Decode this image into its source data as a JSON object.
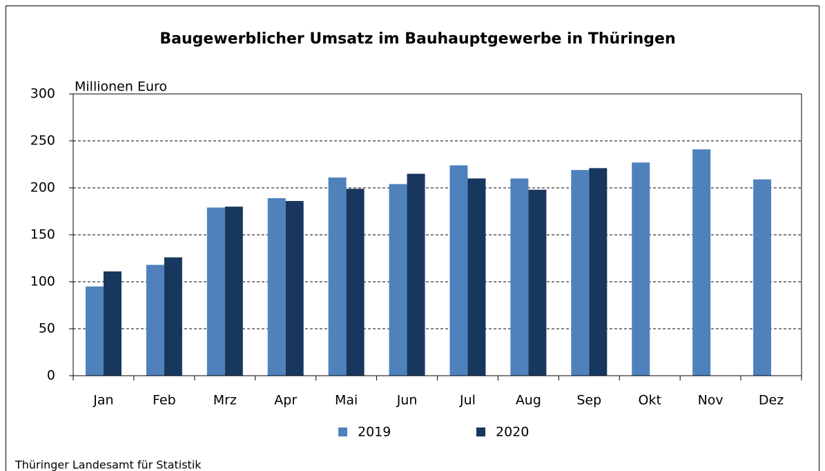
{
  "chart_data": {
    "type": "bar",
    "title": "Baugewerblicher Umsatz im Bauhauptgewerbe in Thüringen",
    "y_label": "Millionen Euro",
    "source": "Thüringer Landesamt für Statistik",
    "categories": [
      "Jan",
      "Feb",
      "Mrz",
      "Apr",
      "Mai",
      "Jun",
      "Jul",
      "Aug",
      "Sep",
      "Okt",
      "Nov",
      "Dez"
    ],
    "series": [
      {
        "name": "2019",
        "color": "#4f81bd",
        "values": [
          95,
          118,
          179,
          189,
          211,
          204,
          224,
          210,
          219,
          227,
          241,
          209
        ]
      },
      {
        "name": "2020",
        "color": "#17375e",
        "values": [
          111,
          126,
          180,
          186,
          199,
          215,
          210,
          198,
          221,
          null,
          null,
          null
        ]
      }
    ],
    "ylim": [
      0,
      300
    ],
    "yticks": [
      0,
      50,
      100,
      150,
      200,
      250,
      300
    ],
    "grid": true,
    "legend": "bottom"
  }
}
